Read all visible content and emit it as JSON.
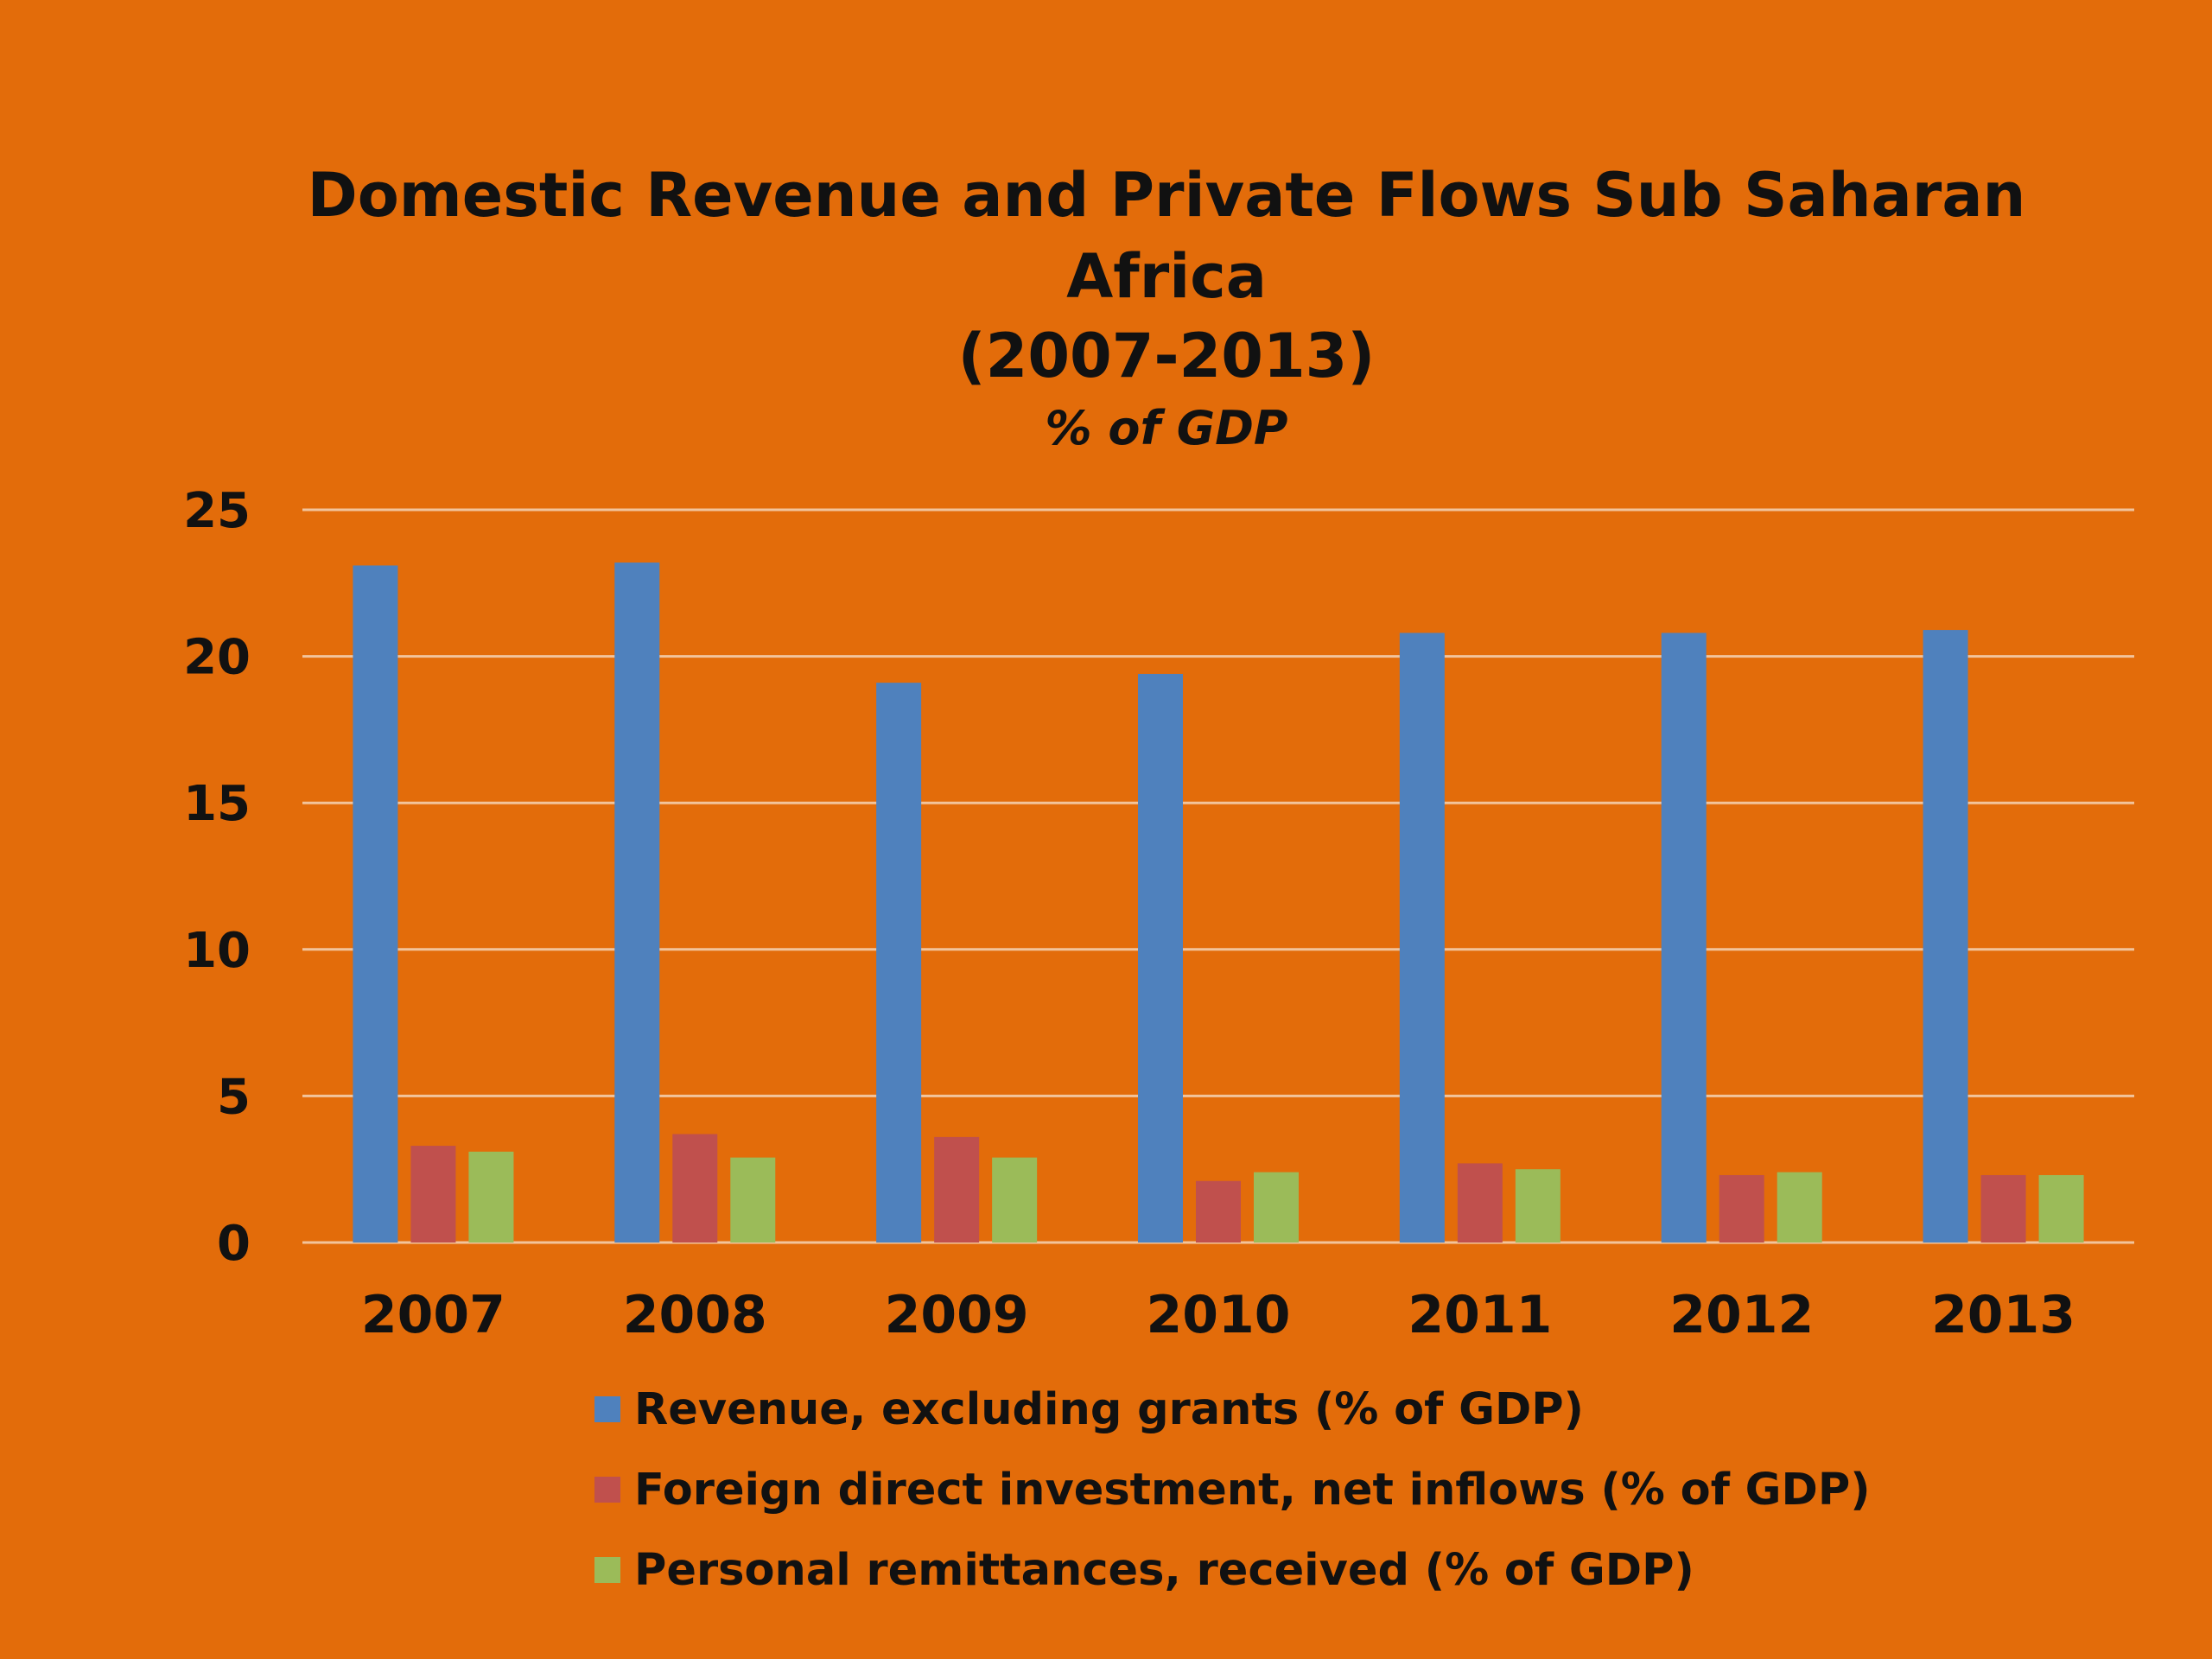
{
  "chart_data": {
    "type": "bar",
    "title": [
      "Domestic Revenue and Private Flows Sub Saharan",
      "Africa",
      "(2007-2013)"
    ],
    "subtitle": "% of GDP",
    "xlabel": "",
    "ylabel": "",
    "categories": [
      "2007",
      "2008",
      "2009",
      "2010",
      "2011",
      "2012",
      "2013"
    ],
    "ylim": [
      0,
      25
    ],
    "yticks": [
      0,
      5,
      10,
      15,
      20,
      25
    ],
    "grid": true,
    "legend_position": "bottom",
    "series": [
      {
        "name": "Revenue, excluding grants (% of GDP)",
        "color": "#4f81bd",
        "values": [
          23.1,
          23.2,
          19.1,
          19.4,
          20.8,
          20.8,
          20.9
        ]
      },
      {
        "name": "Foreign direct investment, net inflows (% of GDP)",
        "color": "#c0504d",
        "values": [
          3.3,
          3.7,
          3.6,
          2.1,
          2.7,
          2.3,
          2.3
        ]
      },
      {
        "name": "Personal remittances, received (% of GDP)",
        "color": "#9bbb59",
        "values": [
          3.1,
          2.9,
          2.9,
          2.4,
          2.5,
          2.4,
          2.3
        ]
      }
    ]
  },
  "colors": {
    "background": "#e36c0a",
    "gridline": "#f2c49c",
    "text": "#111111"
  }
}
